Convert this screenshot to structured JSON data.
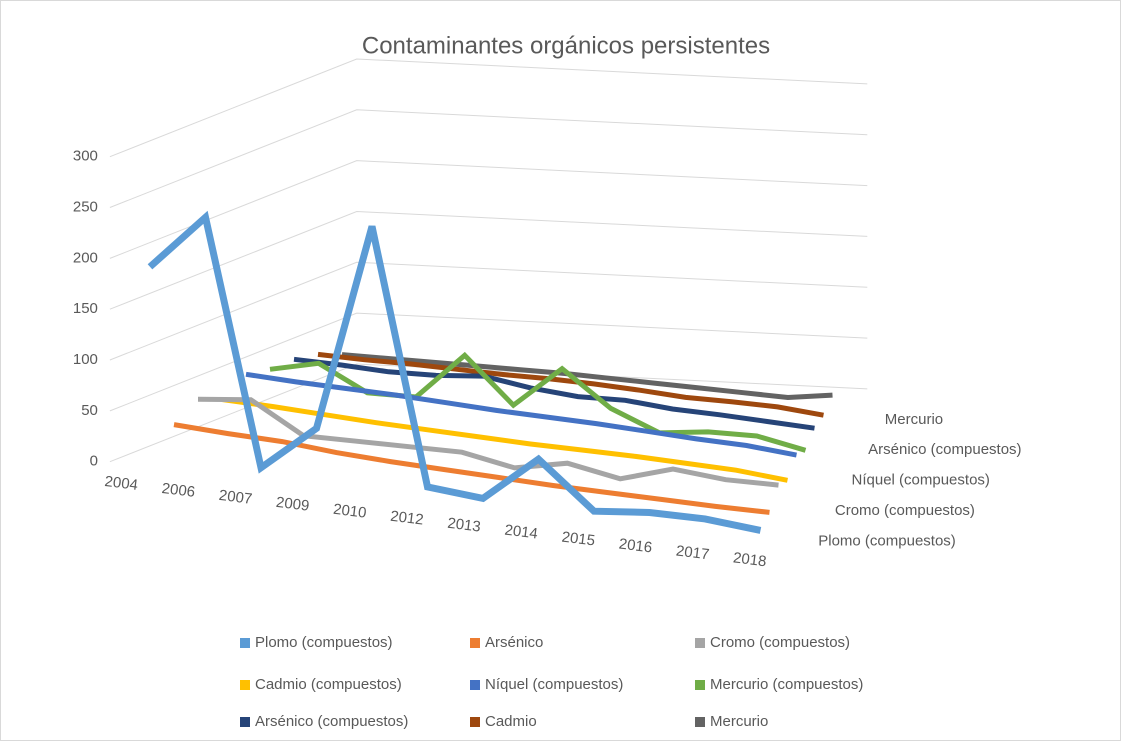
{
  "chart_data": {
    "type": "line3d",
    "title": "Contaminantes orgánicos persistentes",
    "categories": [
      "2004",
      "2006",
      "2007",
      "2009",
      "2010",
      "2012",
      "2013",
      "2014",
      "2015",
      "2016",
      "2017",
      "2018"
    ],
    "ylim": [
      0,
      300
    ],
    "yticks": [
      0,
      50,
      100,
      150,
      200,
      250,
      300
    ],
    "grid": true,
    "legend": "bottom",
    "series": [
      {
        "name": "Plomo (compuestos)",
        "color": "#5b9bd5",
        "values": [
          190,
          245,
          5,
          50,
          255,
          5,
          0,
          45,
          0,
          5,
          5,
          0
        ]
      },
      {
        "name": "Arsénico",
        "color": "#ed7d31",
        "values": [
          25,
          22,
          20,
          15,
          12,
          10,
          8,
          6,
          5,
          4,
          3,
          3
        ]
      },
      {
        "name": "Cromo (compuestos)",
        "color": "#a5a5a5",
        "values": [
          40,
          45,
          15,
          15,
          15,
          15,
          5,
          15,
          5,
          20,
          15,
          15
        ]
      },
      {
        "name": "Cadmio (compuestos)",
        "color": "#ffc000",
        "values": [
          30,
          28,
          25,
          22,
          20,
          18,
          16,
          15,
          14,
          12,
          10,
          5
        ]
      },
      {
        "name": "Níquel (compuestos)",
        "color": "#4472c4",
        "values": [
          45,
          42,
          40,
          38,
          35,
          32,
          30,
          28,
          25,
          22,
          20,
          15
        ]
      },
      {
        "name": "Mercurio (compuestos)",
        "color": "#70ad47",
        "values": [
          40,
          50,
          25,
          25,
          70,
          25,
          65,
          30,
          10,
          15,
          15,
          5
        ]
      },
      {
        "name": "Arsénico (compuestos)",
        "color": "#264478",
        "values": [
          40,
          38,
          35,
          35,
          38,
          30,
          25,
          25,
          20,
          18,
          15,
          12
        ]
      },
      {
        "name": "Cadmio",
        "color": "#9e480e",
        "values": [
          35,
          33,
          32,
          30,
          28,
          27,
          25,
          22,
          18,
          17,
          15,
          10
        ]
      },
      {
        "name": "Mercurio",
        "color": "#636363",
        "values": [
          25,
          24,
          23,
          22,
          21,
          20,
          18,
          16,
          14,
          12,
          10,
          15
        ]
      }
    ]
  }
}
